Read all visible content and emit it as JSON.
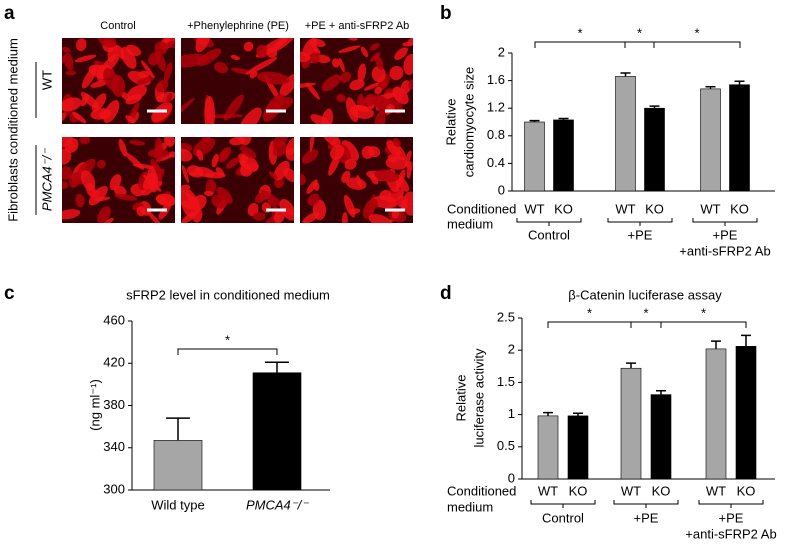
{
  "panel_a": {
    "letter": "a",
    "columns": [
      "Control",
      "+Phenylephrine (PE)",
      "+PE + anti-sFRP2 Ab"
    ],
    "rows": [
      "WT",
      "PMCA4⁻/⁻"
    ],
    "side_label": "Fibroblasts conditioned medium"
  },
  "chart_data": [
    {
      "type": "grouped-bar",
      "letter": "b",
      "y_label": [
        "Relative",
        "cardiomyocyte size"
      ],
      "x_label": [
        "Conditioned",
        "medium"
      ],
      "categories": [
        [
          "Control"
        ],
        [
          "+PE"
        ],
        [
          "+PE",
          "+anti-sFRP2 Ab"
        ]
      ],
      "series": [
        {
          "name": "WT",
          "color": "#a6a6a6",
          "values": [
            1.0,
            1.66,
            1.48
          ],
          "errors": [
            0.02,
            0.05,
            0.03
          ]
        },
        {
          "name": "KO",
          "color": "#000000",
          "values": [
            1.03,
            1.2,
            1.54
          ],
          "errors": [
            0.02,
            0.03,
            0.05
          ]
        }
      ],
      "ylim": [
        0,
        2
      ],
      "yticks": [
        0,
        0.4,
        0.8,
        1.2,
        1.6,
        2
      ],
      "significance": [
        "*",
        "*",
        "*"
      ]
    },
    {
      "type": "bar",
      "letter": "c",
      "title": "sFRP2 level in conditioned medium",
      "y_label": [
        "(ng ml⁻¹)"
      ],
      "categories": [
        "Wild type",
        "PMCA4⁻/⁻"
      ],
      "values": [
        347,
        411
      ],
      "errors": [
        21,
        10
      ],
      "colors": [
        "#a6a6a6",
        "#000000"
      ],
      "ylim": [
        300,
        460
      ],
      "yticks": [
        300,
        340,
        380,
        420,
        460
      ],
      "significance": [
        "*"
      ]
    },
    {
      "type": "grouped-bar",
      "letter": "d",
      "title": "β-Catenin luciferase assay",
      "y_label": [
        "Relative",
        "luciferase activity"
      ],
      "x_label": [
        "Conditioned",
        "medium"
      ],
      "categories": [
        [
          "Control"
        ],
        [
          "+PE"
        ],
        [
          "+PE",
          "+anti-sFRP2 Ab"
        ]
      ],
      "series": [
        {
          "name": "WT",
          "color": "#a6a6a6",
          "values": [
            0.98,
            1.72,
            2.02
          ],
          "errors": [
            0.05,
            0.08,
            0.12
          ]
        },
        {
          "name": "KO",
          "color": "#000000",
          "values": [
            0.98,
            1.31,
            2.06
          ],
          "errors": [
            0.04,
            0.06,
            0.17
          ]
        }
      ],
      "ylim": [
        0,
        2.5
      ],
      "yticks": [
        0,
        0.5,
        1,
        1.5,
        2,
        2.5
      ],
      "significance": [
        "*",
        "*",
        "*"
      ]
    }
  ]
}
